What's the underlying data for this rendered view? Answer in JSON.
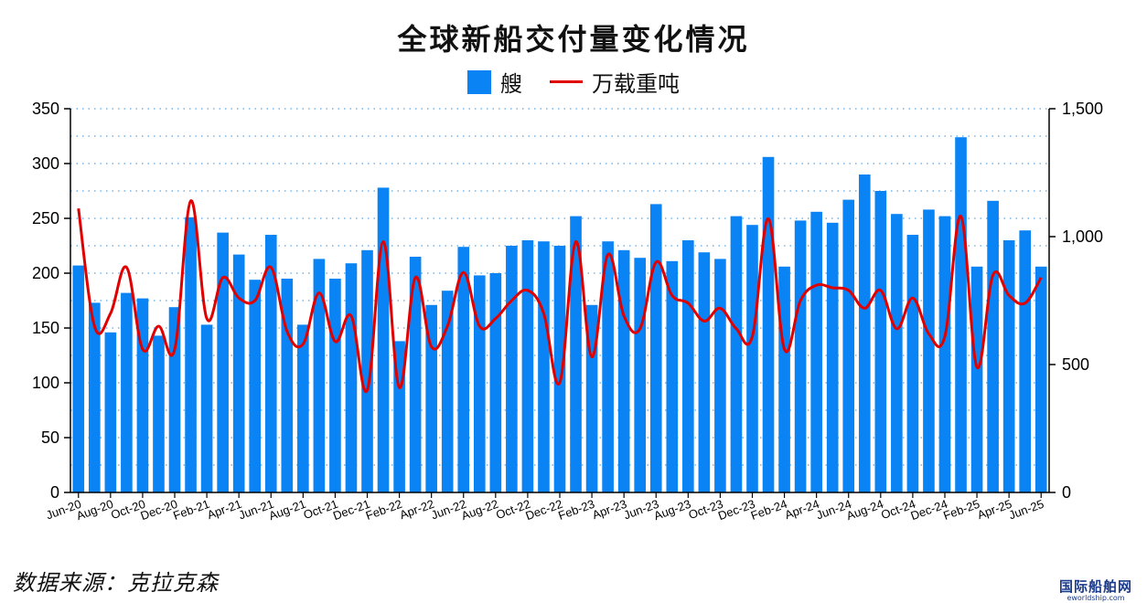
{
  "chart_data": {
    "type": "bar",
    "title": "全球新船交付量变化情况",
    "categories": [
      "Jun-20",
      "Jul-20",
      "Aug-20",
      "Sep-20",
      "Oct-20",
      "Nov-20",
      "Dec-20",
      "Jan-21",
      "Feb-21",
      "Mar-21",
      "Apr-21",
      "May-21",
      "Jun-21",
      "Jul-21",
      "Aug-21",
      "Sep-21",
      "Oct-21",
      "Nov-21",
      "Dec-21",
      "Jan-22",
      "Feb-22",
      "Mar-22",
      "Apr-22",
      "May-22",
      "Jun-22",
      "Jul-22",
      "Aug-22",
      "Sep-22",
      "Oct-22",
      "Nov-22",
      "Dec-22",
      "Jan-23",
      "Feb-23",
      "Mar-23",
      "Apr-23",
      "May-23",
      "Jun-23",
      "Jul-23",
      "Aug-23",
      "Sep-23",
      "Oct-23",
      "Nov-23",
      "Dec-23",
      "Jan-24",
      "Feb-24",
      "Mar-24",
      "Apr-24",
      "May-24",
      "Jun-24",
      "Jul-24",
      "Aug-24",
      "Sep-24",
      "Oct-24",
      "Nov-24",
      "Dec-24",
      "Jan-25",
      "Feb-25",
      "Mar-25",
      "Apr-25",
      "May-25",
      "Jun-25"
    ],
    "x_tick_labels": [
      "Jun-20",
      "Aug-20",
      "Oct-20",
      "Dec-20",
      "Feb-21",
      "Apr-21",
      "Jun-21",
      "Aug-21",
      "Oct-21",
      "Dec-21",
      "Feb-22",
      "Apr-22",
      "Jun-22",
      "Aug-22",
      "Oct-22",
      "Dec-22",
      "Feb-23",
      "Apr-23",
      "Jun-23",
      "Aug-23",
      "Oct-23",
      "Dec-23",
      "Feb-24",
      "Apr-24",
      "Jun-24",
      "Aug-24",
      "Oct-24",
      "Dec-24",
      "Feb-25",
      "Apr-25",
      "Jun-25"
    ],
    "series": [
      {
        "name": "艘",
        "type": "bar",
        "axis": "left",
        "color": "#0a84f5",
        "values": [
          207,
          173,
          146,
          182,
          177,
          143,
          169,
          251,
          153,
          237,
          217,
          194,
          235,
          195,
          153,
          213,
          195,
          209,
          221,
          278,
          138,
          215,
          171,
          184,
          224,
          198,
          200,
          225,
          230,
          229,
          225,
          252,
          171,
          229,
          221,
          214,
          263,
          211,
          230,
          219,
          213,
          252,
          244,
          306,
          206,
          248,
          256,
          246,
          267,
          290,
          275,
          254,
          235,
          258,
          252,
          324,
          206,
          266,
          230,
          239,
          206
        ]
      },
      {
        "name": "万载重吨",
        "type": "line",
        "axis": "right",
        "color": "#e00000",
        "values": [
          1110,
          650,
          700,
          880,
          560,
          650,
          560,
          1140,
          680,
          840,
          760,
          750,
          880,
          630,
          580,
          780,
          590,
          690,
          400,
          980,
          410,
          840,
          570,
          650,
          860,
          650,
          680,
          750,
          790,
          700,
          430,
          980,
          530,
          930,
          690,
          640,
          900,
          770,
          740,
          670,
          720,
          640,
          610,
          1070,
          560,
          750,
          810,
          800,
          790,
          720,
          790,
          640,
          760,
          620,
          610,
          1080,
          490,
          850,
          770,
          740,
          840
        ]
      }
    ],
    "y_left": {
      "min": 0,
      "max": 350,
      "ticks": [
        0,
        50,
        100,
        150,
        200,
        250,
        300,
        350
      ]
    },
    "y_right": {
      "min": 0,
      "max": 1500,
      "ticks": [
        "0",
        "500",
        "1,000",
        "1,500"
      ]
    },
    "grid": "horizontal dotted",
    "legend_position": "top-center"
  },
  "legend": {
    "bar_label": "艘",
    "line_label": "万载重吨"
  },
  "source": "数据来源：克拉克森",
  "watermark": {
    "main": "国际船舶网",
    "sub": "eworldship.com"
  }
}
